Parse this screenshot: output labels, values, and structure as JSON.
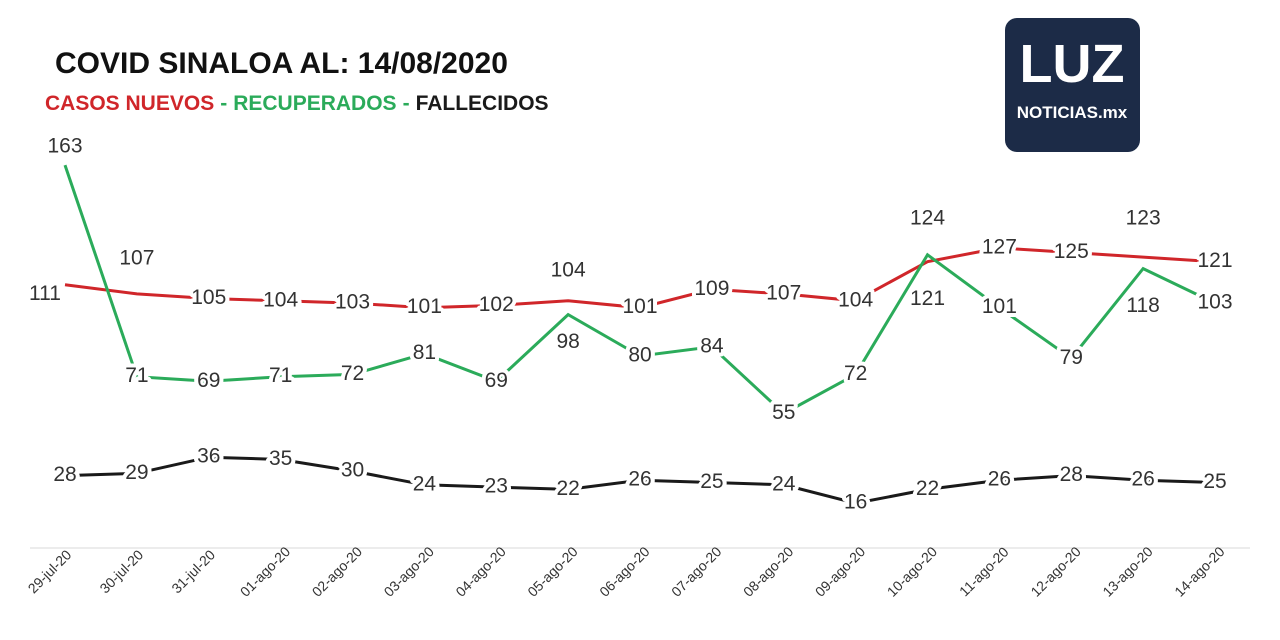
{
  "chart_data": {
    "type": "line",
    "title": "COVID SINALOA AL: 14/08/2020",
    "legend_separator": "-",
    "logo": [
      "LUZ",
      "NOTICIAS.mx"
    ],
    "categories": [
      "29-jul-20",
      "30-jul-20",
      "31-jul-20",
      "01-ago-20",
      "02-ago-20",
      "03-ago-20",
      "04-ago-20",
      "05-ago-20",
      "06-ago-20",
      "07-ago-20",
      "08-ago-20",
      "09-ago-20",
      "10-ago-20",
      "11-ago-20",
      "12-ago-20",
      "13-ago-20",
      "14-ago-20"
    ],
    "ylim": [
      0,
      170
    ],
    "series": [
      {
        "name": "CASOS NUEVOS",
        "color": "#d0262a",
        "values": [
          111,
          107,
          105,
          104,
          103,
          101,
          102,
          104,
          101,
          109,
          107,
          104,
          121,
          127,
          125,
          123,
          121
        ]
      },
      {
        "name": "RECUPERADOS",
        "color": "#2bab5a",
        "values": [
          163,
          71,
          69,
          71,
          72,
          81,
          69,
          98,
          80,
          84,
          55,
          72,
          124,
          101,
          79,
          118,
          103
        ]
      },
      {
        "name": "FALLECIDOS",
        "color": "#1a1a1a",
        "values": [
          28,
          29,
          36,
          35,
          30,
          24,
          23,
          22,
          26,
          25,
          24,
          16,
          22,
          26,
          28,
          26,
          25
        ]
      }
    ]
  }
}
